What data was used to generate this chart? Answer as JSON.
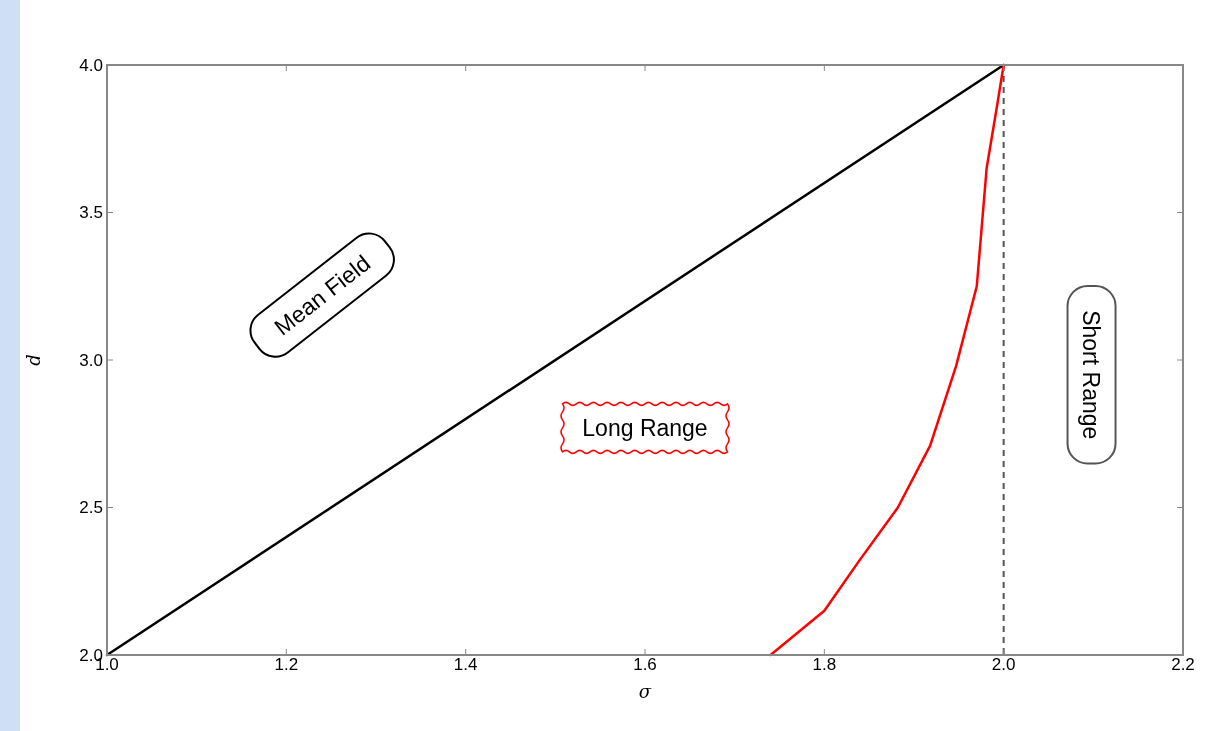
{
  "chart_data": {
    "type": "line",
    "xlabel": "σ",
    "ylabel": "d",
    "xlim": [
      1.0,
      2.2
    ],
    "ylim": [
      2.0,
      4.0
    ],
    "xticks": [
      {
        "value": 1.0,
        "label": "1.0"
      },
      {
        "value": 1.2,
        "label": "1.2"
      },
      {
        "value": 1.4,
        "label": "1.4"
      },
      {
        "value": 1.6,
        "label": "1.6"
      },
      {
        "value": 1.8,
        "label": "1.8"
      },
      {
        "value": 2.0,
        "label": "2.0"
      },
      {
        "value": 2.2,
        "label": "2.2"
      }
    ],
    "yticks": [
      {
        "value": 2.0,
        "label": "2.0"
      },
      {
        "value": 2.5,
        "label": "2.5"
      },
      {
        "value": 3.0,
        "label": "3.0"
      },
      {
        "value": 3.5,
        "label": "3.5"
      },
      {
        "value": 4.0,
        "label": "4.0"
      }
    ],
    "grid": false,
    "line_style": "solid",
    "marker": "none",
    "series": [
      {
        "color": "#000000",
        "x": [
          1.0,
          2.0
        ],
        "values": [
          2.0,
          4.0
        ]
      },
      {
        "color": "#ff0000",
        "x": [
          1.74,
          1.8,
          1.839,
          1.882,
          1.918,
          1.947,
          1.97,
          1.981,
          1.992,
          2.0
        ],
        "values": [
          2.0,
          2.15,
          2.32,
          2.5,
          2.71,
          2.98,
          3.25,
          3.65,
          3.85,
          4.0
        ]
      }
    ],
    "ref_lines": [
      {
        "axis": "x",
        "value": 2.0,
        "color": "#555555",
        "line_style": "dashed"
      }
    ],
    "annotations": [
      "Mean Field",
      "Long Range",
      "Short Range"
    ]
  }
}
